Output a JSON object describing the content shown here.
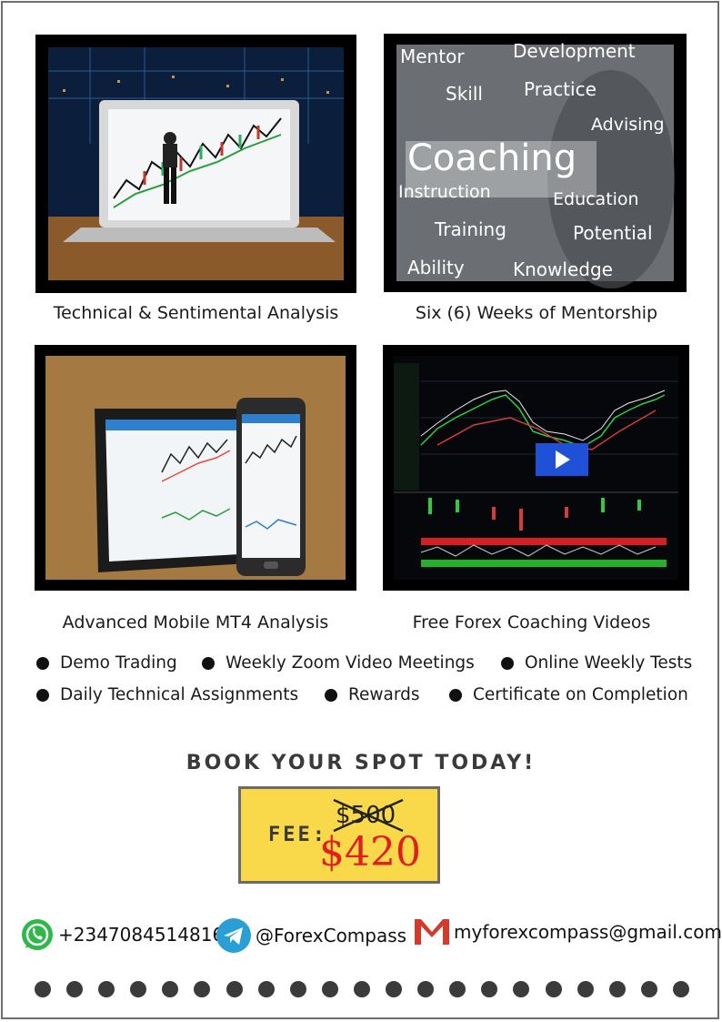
{
  "features": [
    {
      "caption": "Technical &  Sentimental Analysis",
      "image": "trader-laptop-chart-image"
    },
    {
      "caption": "Six (6) Weeks of Mentorship",
      "image": "coaching-words-image"
    },
    {
      "caption": "Advanced Mobile MT4 Analysis",
      "image": "mt4-tablet-phone-image"
    },
    {
      "caption": "Free Forex Coaching Videos",
      "image": "forex-chart-video-image"
    }
  ],
  "coaching_words": {
    "mentor": "Mentor",
    "development": "Development",
    "skill": "Skill",
    "practice": "Practice",
    "advising": "Advising",
    "coaching": "Coaching",
    "instruction": "Instruction",
    "education": "Education",
    "training": "Training",
    "potential": "Potential",
    "ability": "Ability",
    "knowledge": "Knowledge"
  },
  "benefits": {
    "demo_trading": "Demo Trading",
    "weekly_zoom": "Weekly Zoom Video Meetings",
    "online_tests": "Online Weekly Tests",
    "daily_assignments": "Daily Technical Assignments",
    "rewards": "Rewards",
    "certificate": "Certificate on Completion"
  },
  "cta": {
    "heading": "BOOK YOUR SPOT TODAY!",
    "fee_label": "FEE:",
    "old_price": "$500",
    "new_price": "$420"
  },
  "contacts": {
    "whatsapp": "+2347084514816",
    "telegram": "@ForexCompass",
    "email": "myforexcompass@gmail.com"
  },
  "colors": {
    "fee_background": "#f9d94a",
    "new_price": "#e02020",
    "whatsapp": "#2fb84a",
    "telegram": "#2a9fd6",
    "gmail": "#d23a2b"
  }
}
